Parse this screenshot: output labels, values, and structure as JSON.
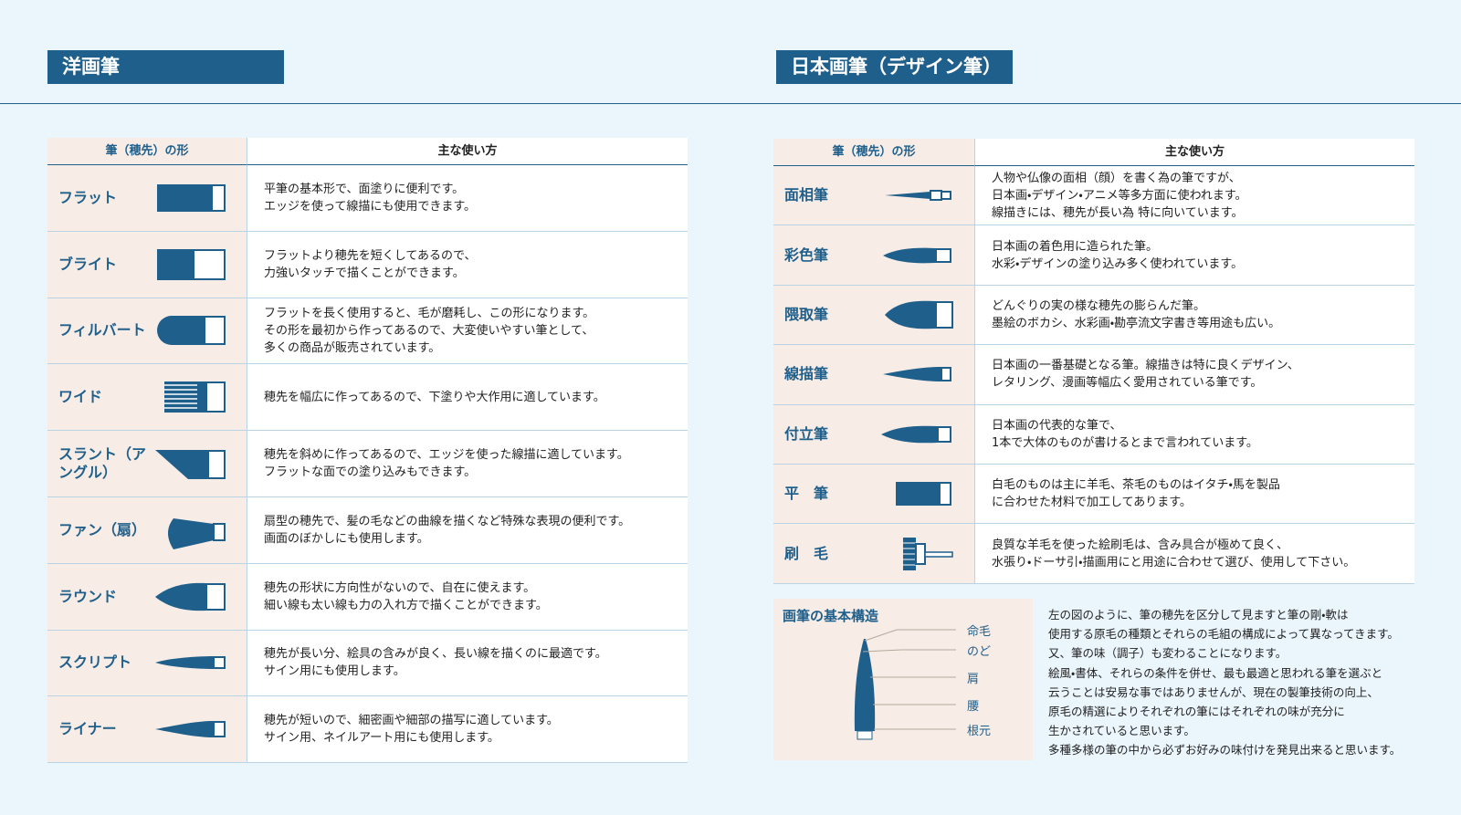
{
  "left": {
    "title": "洋画筆",
    "header": [
      "筆（穂先）の形",
      "主な使い方"
    ],
    "rows": [
      {
        "name": "フラット",
        "desc": [
          "平筆の基本形で、面塗りに便利です。",
          "エッジを使って線描にも使用できます。"
        ]
      },
      {
        "name": "ブライト",
        "desc": [
          "フラットより穂先を短くしてあるので、",
          "力強いタッチで描くことができます。"
        ]
      },
      {
        "name": "フィルバート",
        "desc": [
          "フラットを長く使用すると、毛が磨耗し、この形になります。",
          "その形を最初から作ってあるので、大変使いやすい筆として、",
          "多くの商品が販売されています。"
        ]
      },
      {
        "name": "ワイド",
        "desc": [
          "穂先を幅広に作ってあるので、下塗りや大作用に適しています。"
        ]
      },
      {
        "name": "スラント（アングル）",
        "desc": [
          "穂先を斜めに作ってあるので、エッジを使った線描に適しています。",
          "フラットな面での塗り込みもできます。"
        ]
      },
      {
        "name": "ファン（扇）",
        "desc": [
          "扇型の穂先で、髪の毛などの曲線を描くなど特殊な表現の便利です。",
          "画面のぼかしにも使用します。"
        ]
      },
      {
        "name": "ラウンド",
        "desc": [
          "穂先の形状に方向性がないので、自在に使えます。",
          "細い線も太い線も力の入れ方で描くことができます。"
        ]
      },
      {
        "name": "スクリプト",
        "desc": [
          "穂先が長い分、絵具の含みが良く、長い線を描くのに最適です。",
          "サイン用にも使用します。"
        ]
      },
      {
        "name": "ライナー",
        "desc": [
          "穂先が短いので、細密画や細部の描写に適しています。",
          "サイン用、ネイルアート用にも使用します。"
        ]
      }
    ]
  },
  "right": {
    "title": "日本画筆（デザイン筆）",
    "header": [
      "筆（穂先）の形",
      "主な使い方"
    ],
    "rows": [
      {
        "name": "面相筆",
        "desc": [
          "人物や仏像の面相（顔）を書く為の筆ですが、",
          "日本画・デザイン・アニメ等多方面に使われます。",
          "線描きには、穂先が長い為 特に向いています。"
        ]
      },
      {
        "name": "彩色筆",
        "desc": [
          "日本画の着色用に造られた筆。",
          "水彩・デザインの塗り込み多く使われています。"
        ]
      },
      {
        "name": "隈取筆",
        "desc": [
          "どんぐりの実の様な穂先の膨らんだ筆。",
          "墨絵のボカシ、水彩画・勘亭流文字書き等用途も広い。"
        ]
      },
      {
        "name": "線描筆",
        "desc": [
          "日本画の一番基礎となる筆。線描きは特に良くデザイン、",
          "レタリング、漫画等幅広く愛用されている筆です。"
        ]
      },
      {
        "name": "付立筆",
        "desc": [
          "日本画の代表的な筆で、",
          "1本で大体のものが書けるとまで言われています。"
        ]
      },
      {
        "name": "平　筆",
        "desc": [
          "白毛のものは主に羊毛、茶毛のものはイタチ・馬を製品",
          "に合わせた材料で加工してあります。"
        ]
      },
      {
        "name": "刷　毛",
        "desc": [
          "良質な羊毛を使った絵刷毛は、含み具合が極めて良く、",
          "水張り・ドーサ引・描画用にと用途に合わせて選び、使用して下さい。"
        ]
      }
    ]
  },
  "structure": {
    "title": "画筆の基本構造",
    "parts": [
      "命毛",
      "のど",
      "肩",
      "腰",
      "根元"
    ],
    "text": [
      "左の図のように、筆の穂先を区分して見ますと筆の剛・軟は",
      "使用する原毛の種類とそれらの毛組の構成によって異なってきます。",
      "又、筆の味（調子）も変わることになります。",
      "絵風・書体、それらの条件を併せ、最も最適と思われる筆を選ぶと",
      "云うことは安易な事ではありませんが、現在の製筆技術の向上、",
      "原毛の精選によりそれぞれの筆にはそれぞれの味が充分に",
      "生かされていると思います。",
      "多種多様の筆の中から必ずお好みの味付けを発見出来ると思います。"
    ]
  }
}
